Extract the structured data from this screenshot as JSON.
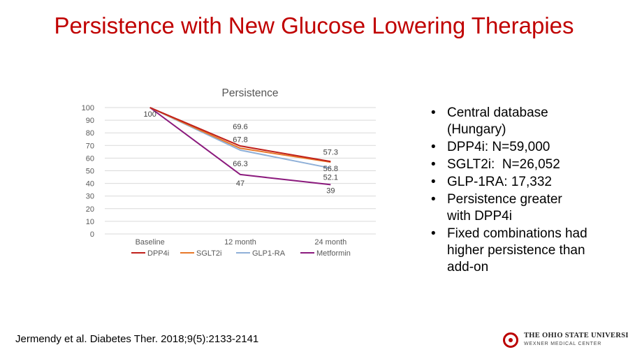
{
  "slide": {
    "title": "Persistence with New Glucose Lowering Therapies",
    "bullets": [
      {
        "line1": "Central database",
        "line2": "(Hungary)"
      },
      {
        "line1": "DPP4i: N=59,000",
        "line2": ""
      },
      {
        "line1": "SGLT2i:  N=26,052",
        "line2": ""
      },
      {
        "line1": "GLP-1RA: 17,332",
        "line2": ""
      },
      {
        "line1": "Persistence greater",
        "line2": "with DPP4i"
      },
      {
        "line1": "Fixed combinations had",
        "line2": "higher persistence than",
        "line3": "add-on"
      }
    ],
    "citation": "Jermendy et al. Diabetes Ther. 2018;9(5):2133-2141",
    "logo": {
      "name": "The Ohio State University",
      "sub": "WEXNER MEDICAL CENTER"
    }
  },
  "chart_data": {
    "type": "line",
    "title": "Persistence",
    "xlabel": "",
    "ylabel": "",
    "categories": [
      "Baseline",
      "12 month",
      "24 month"
    ],
    "ylim": [
      0,
      100
    ],
    "yticks": [
      0,
      10,
      20,
      30,
      40,
      50,
      60,
      70,
      80,
      90,
      100
    ],
    "grid": true,
    "legend": "bottom",
    "series": [
      {
        "name": "DPP4i",
        "values": [
          100,
          69.6,
          57.3
        ],
        "color": "#c0201a"
      },
      {
        "name": "SGLT2i",
        "values": [
          100,
          67.8,
          56.8
        ],
        "color": "#e8782a"
      },
      {
        "name": "GLP1-RA",
        "values": [
          100,
          66.3,
          52.1
        ],
        "color": "#8fb0d8"
      },
      {
        "name": "Metformin",
        "values": [
          100,
          47,
          39
        ],
        "color": "#8b1a7d"
      }
    ],
    "data_labels": [
      {
        "series": 0,
        "point": 0,
        "text": "100",
        "dx": 0,
        "dy": 13
      },
      {
        "series": 0,
        "point": 1,
        "text": "69.6",
        "dx": 0,
        "dy": -24
      },
      {
        "series": 1,
        "point": 1,
        "text": "67.8",
        "dx": 0,
        "dy": -9
      },
      {
        "series": 2,
        "point": 1,
        "text": "66.3",
        "dx": 0,
        "dy": 23
      },
      {
        "series": 3,
        "point": 1,
        "text": "47",
        "dx": 0,
        "dy": 16
      },
      {
        "series": 0,
        "point": 2,
        "text": "57.3",
        "dx": 0,
        "dy": -10
      },
      {
        "series": 1,
        "point": 2,
        "text": "56.8",
        "dx": 0,
        "dy": 13
      },
      {
        "series": 2,
        "point": 2,
        "text": "52.1",
        "dx": 0,
        "dy": 17
      },
      {
        "series": 3,
        "point": 2,
        "text": "39",
        "dx": 0,
        "dy": 12
      }
    ]
  }
}
